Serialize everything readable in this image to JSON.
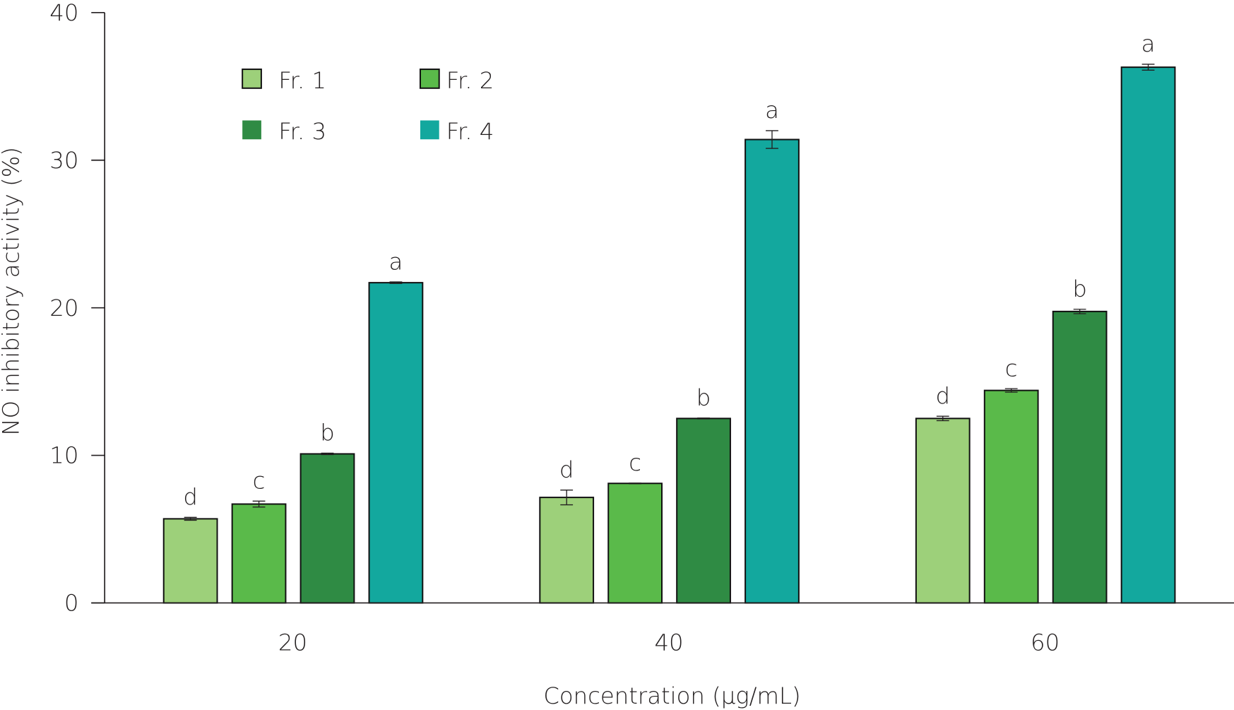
{
  "chart_data": {
    "type": "bar",
    "title": "",
    "xlabel": "Concentration (μg/mL)",
    "ylabel": "NO inhibitory activity (%)",
    "ylim": [
      0,
      40
    ],
    "yticks": [
      "0",
      "10",
      "20",
      "30",
      "40"
    ],
    "categories": [
      "20",
      "40",
      "60"
    ],
    "legend_position": "top-left",
    "series": [
      {
        "name": "Fr. 1",
        "color": "#9dd07a",
        "values": [
          5.7,
          7.15,
          12.5
        ],
        "errors": [
          0.1,
          0.5,
          0.15
        ],
        "letters": [
          "d",
          "d",
          "d"
        ]
      },
      {
        "name": "Fr. 2",
        "color": "#5aba4a",
        "values": [
          6.7,
          8.1,
          14.4
        ],
        "errors": [
          0.2,
          0.02,
          0.12
        ],
        "letters": [
          "c",
          "c",
          "c"
        ]
      },
      {
        "name": "Fr. 3",
        "color": "#2f8b44",
        "values": [
          10.1,
          12.5,
          19.75
        ],
        "errors": [
          0.05,
          0.03,
          0.15
        ],
        "letters": [
          "b",
          "b",
          "b"
        ]
      },
      {
        "name": "Fr. 4",
        "color": "#13a89e",
        "values": [
          21.7,
          31.4,
          36.3
        ],
        "errors": [
          0.05,
          0.6,
          0.2
        ],
        "letters": [
          "a",
          "a",
          "a"
        ]
      }
    ]
  }
}
